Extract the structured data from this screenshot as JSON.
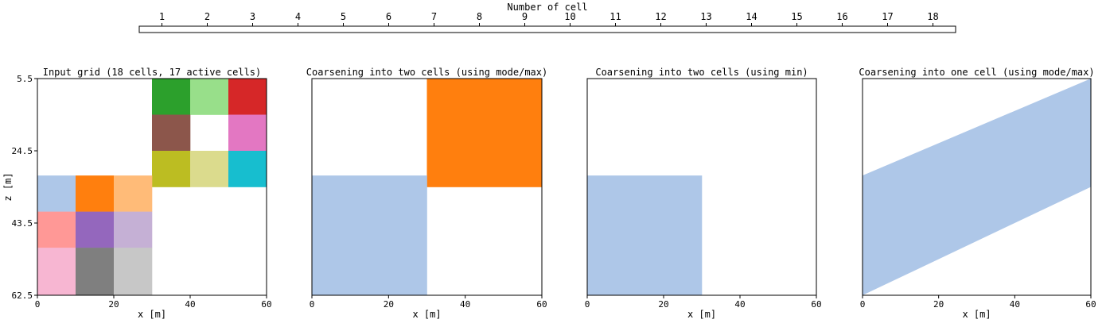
{
  "chart_data": {
    "type": "heatmap",
    "colorbar": {
      "label": "Number of cell",
      "ticks": [
        "1",
        "2",
        "3",
        "4",
        "5",
        "6",
        "7",
        "8",
        "9",
        "10",
        "11",
        "12",
        "13",
        "14",
        "15",
        "16",
        "17",
        "18"
      ],
      "colors": [
        "#aec7e8",
        "#ff7f0e",
        "#ffbb78",
        "#2ca02c",
        "#98df8a",
        "#d62728",
        "#ff9896",
        "#9467bd",
        "#c5b0d5",
        "#8c564b",
        "#c49c94",
        "#e377c2",
        "#f7b6d2",
        "#7f7f7f",
        "#c7c7c7",
        "#bcbd22",
        "#dbdb8d",
        "#17becf"
      ]
    },
    "panels": [
      {
        "title": "Input grid (18 cells, 17 active cells)",
        "xlabel": "x [m]",
        "ylabel": "z [m]",
        "xlim": [
          0,
          60
        ],
        "ylim": [
          62.5,
          5.5
        ],
        "xticks": [
          "0",
          "20",
          "40",
          "60"
        ],
        "yticks": [
          "5.5",
          "24.5",
          "43.5",
          "62.5"
        ],
        "cells": [
          {
            "cell": 4,
            "x": [
              30,
              40
            ],
            "z": [
              5.5,
              15
            ]
          },
          {
            "cell": 5,
            "x": [
              40,
              50
            ],
            "z": [
              5.5,
              15
            ]
          },
          {
            "cell": 6,
            "x": [
              50,
              60
            ],
            "z": [
              5.5,
              15
            ]
          },
          {
            "cell": 10,
            "x": [
              30,
              40
            ],
            "z": [
              15,
              24.5
            ]
          },
          {
            "cell": 12,
            "x": [
              50,
              60
            ],
            "z": [
              15,
              24.5
            ]
          },
          {
            "cell": 16,
            "x": [
              30,
              40
            ],
            "z": [
              24.5,
              34
            ]
          },
          {
            "cell": 17,
            "x": [
              40,
              50
            ],
            "z": [
              24.5,
              34
            ]
          },
          {
            "cell": 18,
            "x": [
              50,
              60
            ],
            "z": [
              24.5,
              34
            ]
          },
          {
            "cell": 1,
            "x": [
              0,
              10
            ],
            "z": [
              31,
              40.5
            ]
          },
          {
            "cell": 2,
            "x": [
              10,
              20
            ],
            "z": [
              31,
              40.5
            ]
          },
          {
            "cell": 3,
            "x": [
              20,
              30
            ],
            "z": [
              31,
              40.5
            ]
          },
          {
            "cell": 7,
            "x": [
              0,
              10
            ],
            "z": [
              40.5,
              50
            ]
          },
          {
            "cell": 8,
            "x": [
              10,
              20
            ],
            "z": [
              40.5,
              50
            ]
          },
          {
            "cell": 9,
            "x": [
              20,
              30
            ],
            "z": [
              40.5,
              50
            ]
          },
          {
            "cell": 13,
            "x": [
              0,
              10
            ],
            "z": [
              50,
              62.5
            ]
          },
          {
            "cell": 14,
            "x": [
              10,
              20
            ],
            "z": [
              50,
              62.5
            ]
          },
          {
            "cell": 15,
            "x": [
              20,
              30
            ],
            "z": [
              50,
              62.5
            ]
          }
        ]
      },
      {
        "title": "Coarsening into two cells (using mode/max)",
        "xlabel": "x [m]",
        "ylabel": "",
        "xlim": [
          0,
          60
        ],
        "ylim": [
          62.5,
          5.5
        ],
        "xticks": [
          "0",
          "20",
          "40",
          "60"
        ],
        "yticks": [],
        "cells": [
          {
            "cell": 2,
            "x": [
              30,
              60
            ],
            "z": [
              5.5,
              34
            ]
          },
          {
            "cell": 1,
            "x": [
              0,
              30
            ],
            "z": [
              31,
              62.5
            ]
          }
        ]
      },
      {
        "title": "Coarsening into two cells (using min)",
        "xlabel": "x [m]",
        "ylabel": "",
        "xlim": [
          0,
          60
        ],
        "ylim": [
          62.5,
          5.5
        ],
        "xticks": [
          "0",
          "20",
          "40",
          "60"
        ],
        "yticks": [],
        "cells": [
          {
            "cell": 1,
            "x": [
              0,
              30
            ],
            "z": [
              31,
              62.5
            ]
          }
        ]
      },
      {
        "title": "Coarsening into one cell (using mode/max)",
        "xlabel": "x [m]",
        "ylabel": "",
        "xlim": [
          0,
          60
        ],
        "ylim": [
          62.5,
          5.5
        ],
        "xticks": [
          "0",
          "20",
          "40",
          "60"
        ],
        "yticks": [],
        "polygons": [
          {
            "cell": 1,
            "points": [
              [
                0,
                31
              ],
              [
                60,
                5.5
              ],
              [
                60,
                34
              ],
              [
                0,
                62.5
              ]
            ]
          }
        ]
      }
    ]
  }
}
